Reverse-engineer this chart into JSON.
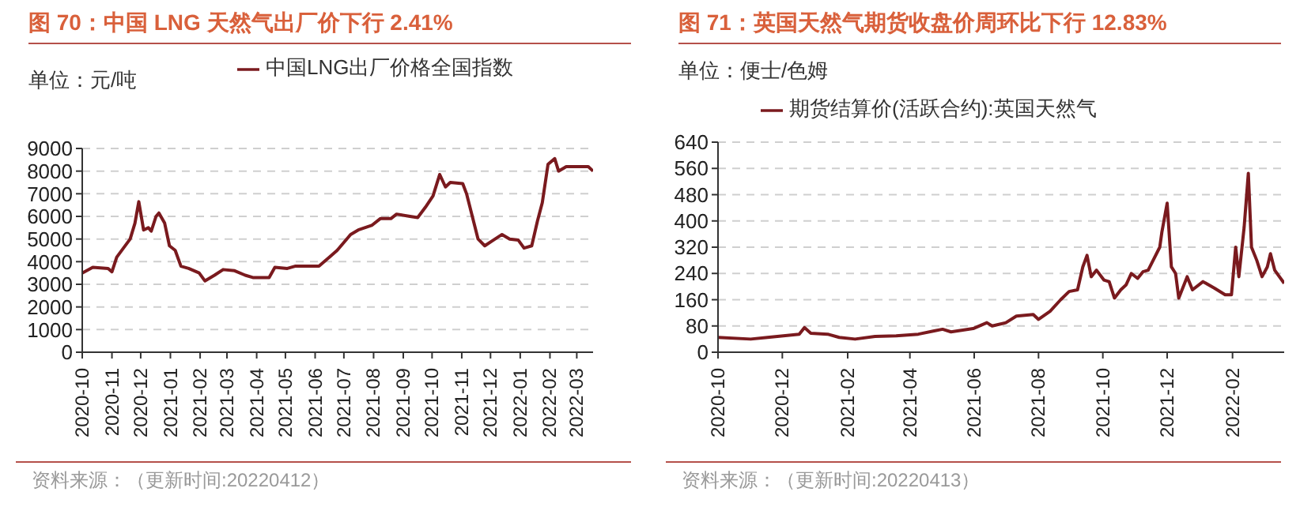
{
  "chart_data": [
    {
      "type": "line",
      "title": "图 70：中国 LNG 天然气出厂价下行 2.41%",
      "ylabel": "单位：元/吨",
      "legend": "top",
      "grid": "y",
      "marker": "none",
      "line_style": "solid",
      "xlim": [
        "2020-10-01",
        "2022-03-18"
      ],
      "xticks": [
        "2020-10",
        "2020-11",
        "2020-12",
        "2021-01",
        "2021-02",
        "2021-03",
        "2021-04",
        "2021-05",
        "2021-06",
        "2021-07",
        "2021-08",
        "2021-09",
        "2021-10",
        "2021-11",
        "2021-12",
        "2022-01",
        "2022-02",
        "2022-03"
      ],
      "ylim": [
        0,
        9000
      ],
      "yticks": [
        0,
        1000,
        2000,
        3000,
        4000,
        5000,
        6000,
        7000,
        8000,
        9000
      ],
      "annotations": [
        "资料来源：（更新时间:20220412）"
      ],
      "series": [
        {
          "name": "中国LNG出厂价格全国指数",
          "color": "#7a1a1e",
          "x": [
            "2020-10-01",
            "2020-10-12",
            "2020-10-28",
            "2020-11-01",
            "2020-11-06",
            "2020-11-20",
            "2020-11-25",
            "2020-11-29",
            "2020-12-04",
            "2020-12-09",
            "2020-12-12",
            "2020-12-17",
            "2020-12-20",
            "2020-12-26",
            "2020-12-31",
            "2021-01-06",
            "2021-01-12",
            "2021-01-20",
            "2021-01-31",
            "2021-02-06",
            "2021-02-16",
            "2021-02-25",
            "2021-03-09",
            "2021-03-20",
            "2021-03-28",
            "2021-04-14",
            "2021-04-20",
            "2021-05-03",
            "2021-05-11",
            "2021-06-05",
            "2021-06-16",
            "2021-06-24",
            "2021-07-08",
            "2021-07-16",
            "2021-07-30",
            "2021-08-08",
            "2021-08-19",
            "2021-08-25",
            "2021-09-08",
            "2021-09-16",
            "2021-09-24",
            "2021-10-02",
            "2021-10-09",
            "2021-10-15",
            "2021-10-20",
            "2021-11-02",
            "2021-11-06",
            "2021-11-12",
            "2021-11-18",
            "2021-11-25",
            "2021-12-02",
            "2021-12-13",
            "2021-12-21",
            "2021-12-30",
            "2022-01-05",
            "2022-01-13",
            "2022-01-19",
            "2022-01-24",
            "2022-01-30",
            "2022-02-06",
            "2022-02-10",
            "2022-02-18",
            "2022-03-02",
            "2022-03-13",
            "2022-03-18"
          ],
          "values": [
            3500,
            3750,
            3700,
            3550,
            4200,
            5000,
            5700,
            6650,
            5400,
            5500,
            5350,
            6000,
            6150,
            5700,
            4700,
            4500,
            3800,
            3700,
            3500,
            3150,
            3400,
            3650,
            3600,
            3400,
            3300,
            3300,
            3750,
            3700,
            3800,
            3800,
            4200,
            4500,
            5200,
            5400,
            5600,
            5900,
            5900,
            6100,
            6000,
            5950,
            6400,
            6900,
            7850,
            7300,
            7500,
            7450,
            7000,
            6000,
            5000,
            4700,
            4900,
            5200,
            5000,
            4950,
            4600,
            4700,
            5800,
            6600,
            8300,
            8550,
            8000,
            8200,
            8200,
            8200,
            8000
          ]
        }
      ]
    },
    {
      "type": "line",
      "title": "图 71：英国天然气期货收盘价周环比下行 12.83%",
      "ylabel": "单位：便士/色姆",
      "legend": "top",
      "grid": "y",
      "marker": "none",
      "line_style": "solid",
      "xlim": [
        "2020-10-01",
        "2022-03-22"
      ],
      "xticks": [
        "2020-10",
        "2020-12",
        "2021-02",
        "2021-04",
        "2021-06",
        "2021-08",
        "2021-10",
        "2021-12",
        "2022-02"
      ],
      "ylim": [
        0,
        640
      ],
      "yticks": [
        0,
        80,
        160,
        240,
        320,
        400,
        480,
        560,
        640
      ],
      "annotations": [
        "资料来源：（更新时间:20220413）"
      ],
      "series": [
        {
          "name": "期货结算价(活跃合约):英国天然气",
          "color": "#7a1a1e",
          "x": [
            "2020-10-01",
            "2020-11-01",
            "2020-11-17",
            "2020-12-02",
            "2020-12-17",
            "2020-12-22",
            "2020-12-28",
            "2021-01-13",
            "2021-01-24",
            "2021-02-08",
            "2021-02-27",
            "2021-03-19",
            "2021-04-09",
            "2021-04-24",
            "2021-05-02",
            "2021-05-10",
            "2021-05-31",
            "2021-06-13",
            "2021-06-18",
            "2021-07-01",
            "2021-07-11",
            "2021-07-27",
            "2021-08-01",
            "2021-08-12",
            "2021-08-22",
            "2021-08-30",
            "2021-09-07",
            "2021-09-12",
            "2021-09-16",
            "2021-09-20",
            "2021-09-25",
            "2021-10-02",
            "2021-10-07",
            "2021-10-12",
            "2021-10-18",
            "2021-10-23",
            "2021-10-28",
            "2021-11-03",
            "2021-11-08",
            "2021-11-13",
            "2021-11-24",
            "2021-11-26",
            "2021-12-01",
            "2021-12-05",
            "2021-12-09",
            "2021-12-12",
            "2021-12-20",
            "2021-12-25",
            "2022-01-04",
            "2022-01-15",
            "2022-01-25",
            "2022-01-31",
            "2022-02-04",
            "2022-02-07",
            "2022-02-12",
            "2022-02-16",
            "2022-02-19",
            "2022-02-24",
            "2022-03-01",
            "2022-03-06",
            "2022-03-09",
            "2022-03-13",
            "2022-03-22"
          ],
          "values": [
            45,
            40,
            45,
            50,
            55,
            75,
            58,
            55,
            45,
            40,
            48,
            50,
            55,
            65,
            70,
            62,
            72,
            90,
            80,
            90,
            110,
            115,
            100,
            125,
            160,
            185,
            190,
            260,
            295,
            230,
            250,
            220,
            215,
            165,
            190,
            205,
            240,
            225,
            245,
            250,
            320,
            366,
            454,
            260,
            240,
            165,
            230,
            190,
            215,
            195,
            175,
            175,
            320,
            230,
            380,
            545,
            320,
            280,
            230,
            260,
            300,
            250,
            210
          ]
        }
      ]
    }
  ]
}
